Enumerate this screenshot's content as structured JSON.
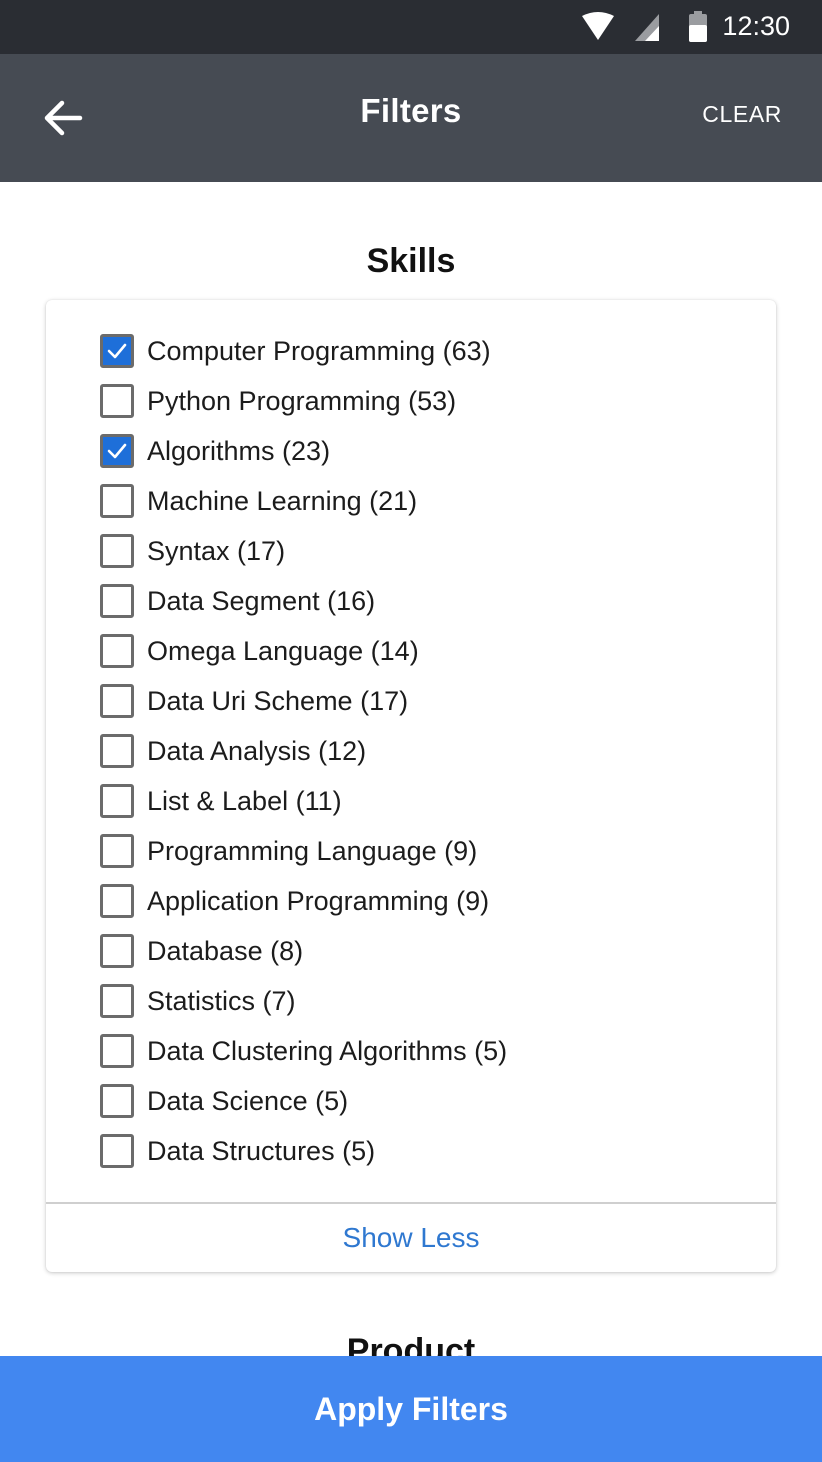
{
  "status_bar": {
    "time": "12:30",
    "icons": [
      "wifi-icon",
      "signal-icon",
      "battery-icon"
    ]
  },
  "app_bar": {
    "title": "Filters",
    "clear_label": "CLEAR",
    "back_icon": "arrow-back-icon"
  },
  "skills": {
    "title": "Skills",
    "items": [
      {
        "label": "Computer Programming (63)",
        "checked": true
      },
      {
        "label": "Python Programming (53)",
        "checked": false
      },
      {
        "label": "Algorithms (23)",
        "checked": true
      },
      {
        "label": "Machine Learning (21)",
        "checked": false
      },
      {
        "label": "Syntax (17)",
        "checked": false
      },
      {
        "label": "Data Segment (16)",
        "checked": false
      },
      {
        "label": "Omega Language (14)",
        "checked": false
      },
      {
        "label": "Data Uri Scheme (17)",
        "checked": false
      },
      {
        "label": "Data Analysis (12)",
        "checked": false
      },
      {
        "label": "List & Label (11)",
        "checked": false
      },
      {
        "label": "Programming Language (9)",
        "checked": false
      },
      {
        "label": "Application Programming (9)",
        "checked": false
      },
      {
        "label": "Database (8)",
        "checked": false
      },
      {
        "label": "Statistics (7)",
        "checked": false
      },
      {
        "label": "Data Clustering Algorithms (5)",
        "checked": false
      },
      {
        "label": "Data Science (5)",
        "checked": false
      },
      {
        "label": "Data Structures (5)",
        "checked": false
      }
    ],
    "show_less_label": "Show Less"
  },
  "product": {
    "title": "Product"
  },
  "apply_label": "Apply Filters",
  "colors": {
    "accent": "#4287f0",
    "checkbox_checked": "#1e6fd9",
    "link": "#2f78d0",
    "app_bar": "#464b53",
    "status_bar": "#2a2d33"
  }
}
